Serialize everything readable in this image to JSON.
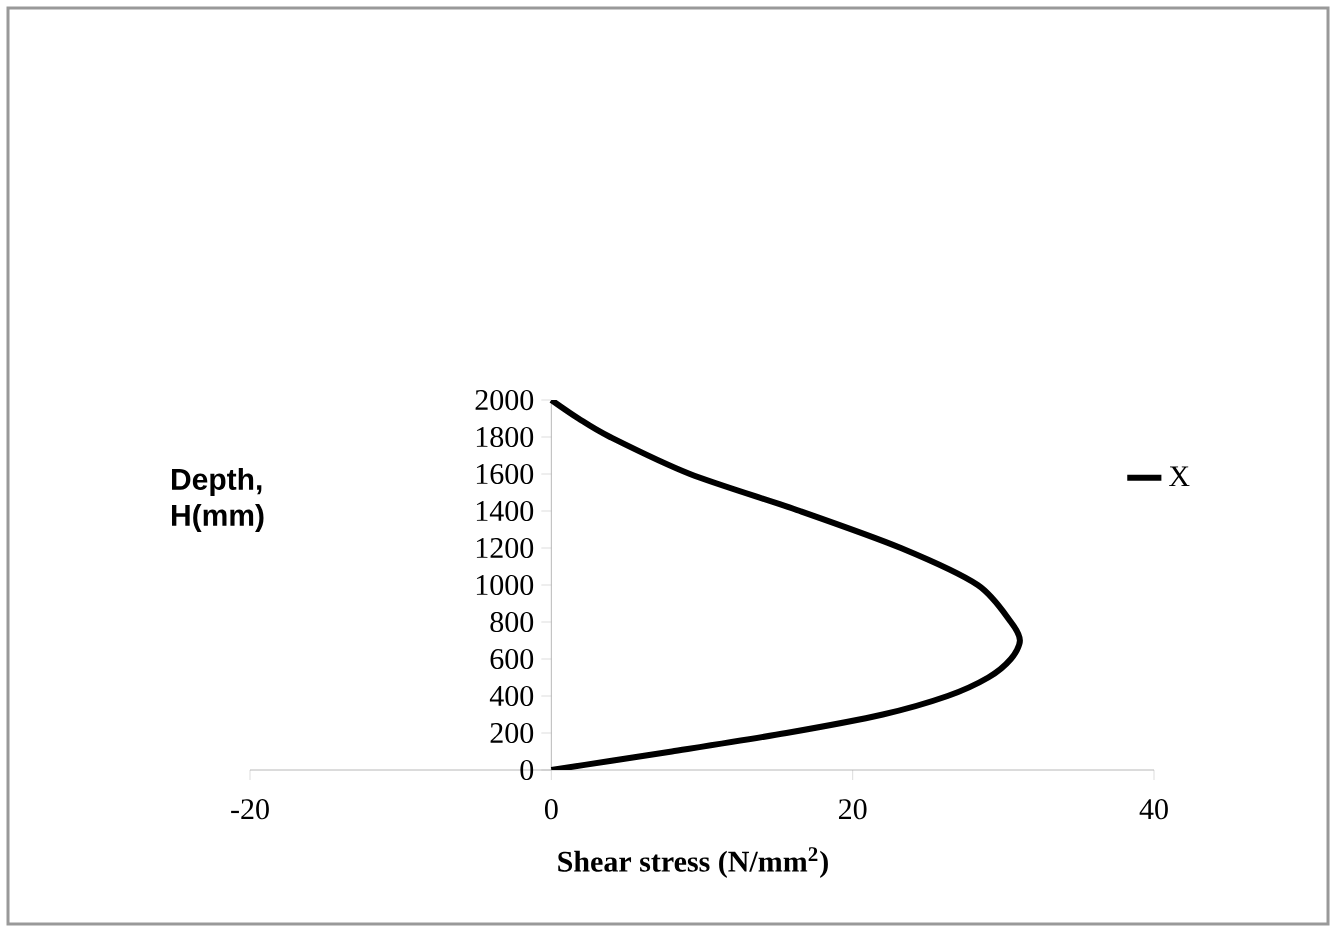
{
  "chart_data": {
    "type": "line",
    "xlabel": "Shear stress (N/mm$^{2}$)",
    "ylabel": "Depth, H(mm)",
    "xlim": [
      -20,
      40
    ],
    "xticks": [
      -20,
      0,
      20,
      40
    ],
    "ylim": [
      0,
      2000
    ],
    "yticks": [
      0,
      200,
      400,
      600,
      800,
      1000,
      1200,
      1400,
      1600,
      1800,
      2000
    ],
    "legend": "right",
    "series": [
      {
        "name": "X",
        "color": "#000000",
        "x": [
          0,
          4,
          8,
          15.6,
          22,
          26.3,
          29,
          30.5,
          31.1,
          30.5,
          28.3,
          23.2,
          16.5,
          9.2,
          3.9,
          1.8,
          0
        ],
        "values": [
          0,
          50,
          100,
          200,
          300,
          400,
          500,
          600,
          700,
          800,
          1000,
          1200,
          1400,
          1600,
          1800,
          1900,
          2000
        ]
      }
    ]
  }
}
